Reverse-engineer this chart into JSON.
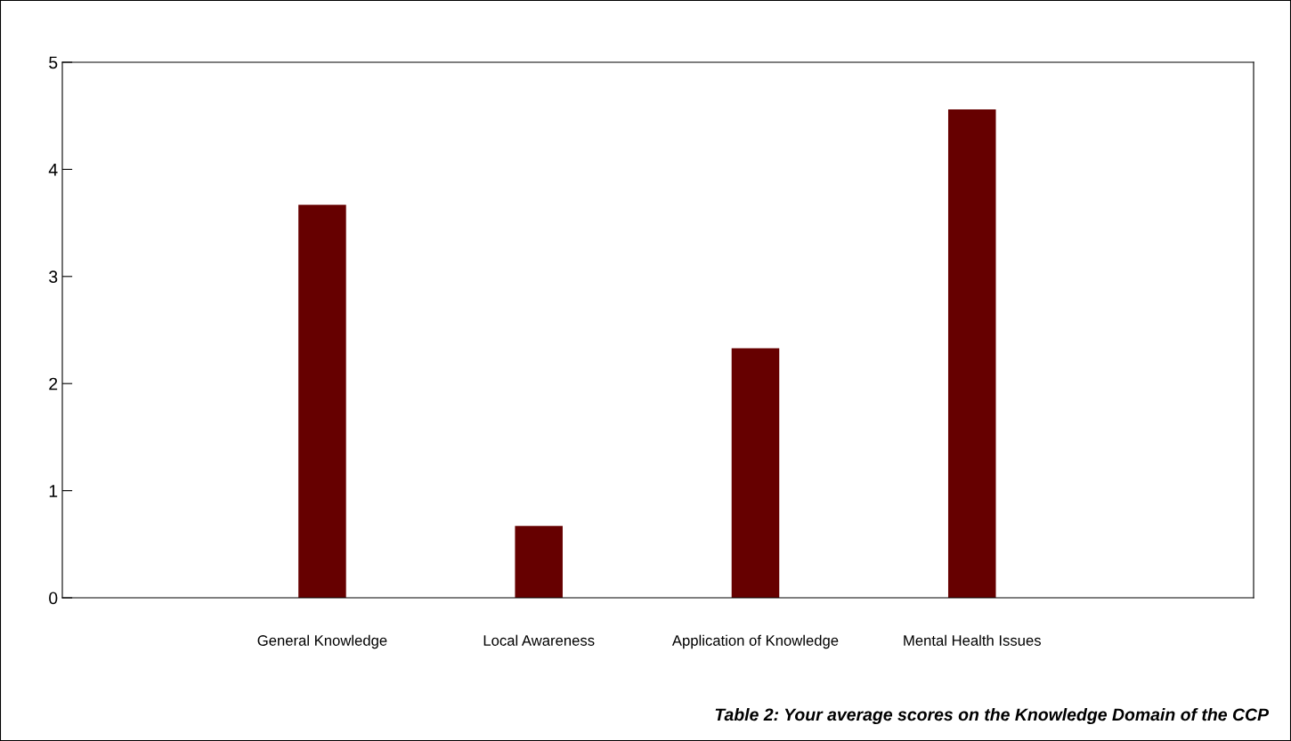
{
  "chart_data": {
    "type": "bar",
    "categories": [
      "General Knowledge",
      "Local Awareness",
      "Application of Knowledge",
      "Mental Health Issues"
    ],
    "values": [
      3.67,
      0.67,
      2.33,
      4.56
    ],
    "color": "#660000",
    "ylim": [
      0,
      5
    ],
    "yticks": [
      0,
      1,
      2,
      3,
      4,
      5
    ],
    "grid": false,
    "legend": false,
    "annotations": [
      "Table 2: Your average scores on the Knowledge Domain of the CCP"
    ]
  }
}
